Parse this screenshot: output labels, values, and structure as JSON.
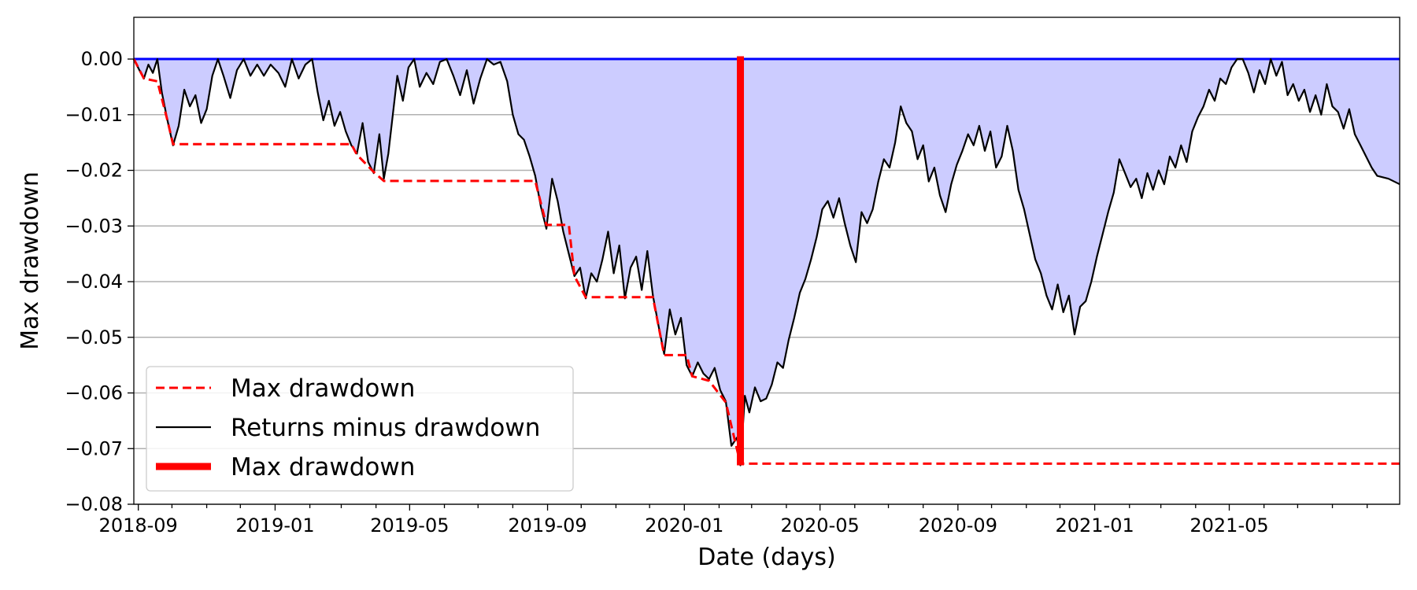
{
  "chart_data": {
    "type": "line",
    "title": "",
    "xlabel": "Date (days)",
    "ylabel": "Max drawdown",
    "xlim": [
      "2018-08-28",
      "2021-09-30"
    ],
    "ylim": [
      -0.08,
      0.0075
    ],
    "grid": "horizontal",
    "legend_position": "lower-left",
    "x_ticks": [
      "2018-09",
      "2019-01",
      "2019-05",
      "2019-09",
      "2020-01",
      "2020-05",
      "2020-09",
      "2021-01",
      "2021-05"
    ],
    "y_ticks": [
      "0.00",
      "−0.01",
      "−0.02",
      "−0.03",
      "−0.04",
      "−0.05",
      "−0.06",
      "−0.07",
      "−0.08"
    ],
    "y_tick_values": [
      0.0,
      -0.01,
      -0.02,
      -0.03,
      -0.04,
      -0.05,
      -0.06,
      -0.07,
      -0.08
    ],
    "colors": {
      "drawdown_line": "#000000",
      "max_drawdown": "#ff0000",
      "fill": "#ccccff",
      "zero_line": "#0000ff",
      "grid": "#b0b0b0"
    },
    "max_drawdown_marker": {
      "date": "2020-02-20",
      "value": -0.073
    },
    "series": [
      {
        "name": "Returns minus drawdown",
        "style": "solid",
        "color": "#000000",
        "points": [
          [
            "2018-08-28",
            0.0
          ],
          [
            "2018-09-02",
            -0.002
          ],
          [
            "2018-09-06",
            -0.0035
          ],
          [
            "2018-09-10",
            -0.001
          ],
          [
            "2018-09-14",
            -0.0025
          ],
          [
            "2018-09-18",
            0.0
          ],
          [
            "2018-09-22",
            -0.006
          ],
          [
            "2018-09-27",
            -0.011
          ],
          [
            "2018-10-02",
            -0.0155
          ],
          [
            "2018-10-07",
            -0.012
          ],
          [
            "2018-10-12",
            -0.0055
          ],
          [
            "2018-10-17",
            -0.0085
          ],
          [
            "2018-10-22",
            -0.0065
          ],
          [
            "2018-10-27",
            -0.0115
          ],
          [
            "2018-11-01",
            -0.009
          ],
          [
            "2018-11-06",
            -0.003
          ],
          [
            "2018-11-11",
            0.0
          ],
          [
            "2018-11-16",
            -0.003
          ],
          [
            "2018-11-22",
            -0.007
          ],
          [
            "2018-11-28",
            -0.002
          ],
          [
            "2018-12-04",
            0.0
          ],
          [
            "2018-12-10",
            -0.003
          ],
          [
            "2018-12-16",
            -0.001
          ],
          [
            "2018-12-22",
            -0.003
          ],
          [
            "2018-12-28",
            -0.001
          ],
          [
            "2019-01-04",
            -0.0025
          ],
          [
            "2019-01-10",
            -0.005
          ],
          [
            "2019-01-16",
            0.0
          ],
          [
            "2019-01-22",
            -0.0035
          ],
          [
            "2019-01-28",
            -0.001
          ],
          [
            "2019-02-03",
            0.0
          ],
          [
            "2019-02-08",
            -0.006
          ],
          [
            "2019-02-13",
            -0.011
          ],
          [
            "2019-02-18",
            -0.0075
          ],
          [
            "2019-02-23",
            -0.012
          ],
          [
            "2019-02-28",
            -0.0095
          ],
          [
            "2019-03-05",
            -0.013
          ],
          [
            "2019-03-10",
            -0.0155
          ],
          [
            "2019-03-15",
            -0.017
          ],
          [
            "2019-03-20",
            -0.0115
          ],
          [
            "2019-03-25",
            -0.0185
          ],
          [
            "2019-03-30",
            -0.0205
          ],
          [
            "2019-04-04",
            -0.0135
          ],
          [
            "2019-04-08",
            -0.0215
          ],
          [
            "2019-04-12",
            -0.017
          ],
          [
            "2019-04-16",
            -0.01
          ],
          [
            "2019-04-20",
            -0.003
          ],
          [
            "2019-04-25",
            -0.0075
          ],
          [
            "2019-04-30",
            -0.0015
          ],
          [
            "2019-05-05",
            0.0
          ],
          [
            "2019-05-10",
            -0.005
          ],
          [
            "2019-05-16",
            -0.0025
          ],
          [
            "2019-05-22",
            -0.0045
          ],
          [
            "2019-05-28",
            -0.0005
          ],
          [
            "2019-06-03",
            0.0
          ],
          [
            "2019-06-09",
            -0.003
          ],
          [
            "2019-06-15",
            -0.0065
          ],
          [
            "2019-06-21",
            -0.002
          ],
          [
            "2019-06-27",
            -0.008
          ],
          [
            "2019-07-03",
            -0.0035
          ],
          [
            "2019-07-09",
            0.0
          ],
          [
            "2019-07-15",
            -0.001
          ],
          [
            "2019-07-21",
            -0.0005
          ],
          [
            "2019-07-27",
            -0.004
          ],
          [
            "2019-08-01",
            -0.01
          ],
          [
            "2019-08-06",
            -0.0135
          ],
          [
            "2019-08-11",
            -0.0145
          ],
          [
            "2019-08-16",
            -0.0175
          ],
          [
            "2019-08-21",
            -0.021
          ],
          [
            "2019-08-26",
            -0.0265
          ],
          [
            "2019-08-31",
            -0.0305
          ],
          [
            "2019-09-05",
            -0.0215
          ],
          [
            "2019-09-10",
            -0.0255
          ],
          [
            "2019-09-15",
            -0.031
          ],
          [
            "2019-09-20",
            -0.035
          ],
          [
            "2019-09-25",
            -0.039
          ],
          [
            "2019-09-30",
            -0.0375
          ],
          [
            "2019-10-05",
            -0.043
          ],
          [
            "2019-10-10",
            -0.0385
          ],
          [
            "2019-10-15",
            -0.04
          ],
          [
            "2019-10-20",
            -0.036
          ],
          [
            "2019-10-25",
            -0.031
          ],
          [
            "2019-10-30",
            -0.0385
          ],
          [
            "2019-11-04",
            -0.0335
          ],
          [
            "2019-11-09",
            -0.043
          ],
          [
            "2019-11-14",
            -0.0375
          ],
          [
            "2019-11-19",
            -0.0355
          ],
          [
            "2019-11-24",
            -0.0415
          ],
          [
            "2019-11-29",
            -0.0345
          ],
          [
            "2019-12-04",
            -0.0425
          ],
          [
            "2019-12-09",
            -0.048
          ],
          [
            "2019-12-14",
            -0.053
          ],
          [
            "2019-12-19",
            -0.045
          ],
          [
            "2019-12-24",
            -0.0495
          ],
          [
            "2019-12-29",
            -0.0465
          ],
          [
            "2020-01-03",
            -0.055
          ],
          [
            "2020-01-08",
            -0.057
          ],
          [
            "2020-01-13",
            -0.0545
          ],
          [
            "2020-01-18",
            -0.0565
          ],
          [
            "2020-01-23",
            -0.0575
          ],
          [
            "2020-01-28",
            -0.0555
          ],
          [
            "2020-02-02",
            -0.0595
          ],
          [
            "2020-02-07",
            -0.0615
          ],
          [
            "2020-02-12",
            -0.0695
          ],
          [
            "2020-02-17",
            -0.068
          ],
          [
            "2020-02-20",
            -0.073
          ],
          [
            "2020-02-24",
            -0.0605
          ],
          [
            "2020-02-28",
            -0.0635
          ],
          [
            "2020-03-04",
            -0.059
          ],
          [
            "2020-03-09",
            -0.0615
          ],
          [
            "2020-03-14",
            -0.061
          ],
          [
            "2020-03-19",
            -0.0585
          ],
          [
            "2020-03-24",
            -0.0545
          ],
          [
            "2020-03-29",
            -0.0555
          ],
          [
            "2020-04-03",
            -0.0505
          ],
          [
            "2020-04-08",
            -0.0465
          ],
          [
            "2020-04-13",
            -0.042
          ],
          [
            "2020-04-18",
            -0.0395
          ],
          [
            "2020-04-23",
            -0.036
          ],
          [
            "2020-04-28",
            -0.032
          ],
          [
            "2020-05-03",
            -0.027
          ],
          [
            "2020-05-08",
            -0.0255
          ],
          [
            "2020-05-13",
            -0.0285
          ],
          [
            "2020-05-18",
            -0.025
          ],
          [
            "2020-05-23",
            -0.0295
          ],
          [
            "2020-05-28",
            -0.0335
          ],
          [
            "2020-06-02",
            -0.0365
          ],
          [
            "2020-06-07",
            -0.0275
          ],
          [
            "2020-06-12",
            -0.0295
          ],
          [
            "2020-06-17",
            -0.027
          ],
          [
            "2020-06-22",
            -0.022
          ],
          [
            "2020-06-27",
            -0.018
          ],
          [
            "2020-07-02",
            -0.0195
          ],
          [
            "2020-07-07",
            -0.015
          ],
          [
            "2020-07-12",
            -0.0085
          ],
          [
            "2020-07-17",
            -0.0115
          ],
          [
            "2020-07-22",
            -0.013
          ],
          [
            "2020-07-27",
            -0.018
          ],
          [
            "2020-08-01",
            -0.0155
          ],
          [
            "2020-08-06",
            -0.022
          ],
          [
            "2020-08-11",
            -0.0195
          ],
          [
            "2020-08-16",
            -0.0245
          ],
          [
            "2020-08-21",
            -0.0275
          ],
          [
            "2020-08-26",
            -0.0225
          ],
          [
            "2020-08-31",
            -0.019
          ],
          [
            "2020-09-05",
            -0.0165
          ],
          [
            "2020-09-10",
            -0.0135
          ],
          [
            "2020-09-15",
            -0.0155
          ],
          [
            "2020-09-20",
            -0.012
          ],
          [
            "2020-09-25",
            -0.0165
          ],
          [
            "2020-09-30",
            -0.013
          ],
          [
            "2020-10-05",
            -0.0195
          ],
          [
            "2020-10-10",
            -0.0175
          ],
          [
            "2020-10-15",
            -0.012
          ],
          [
            "2020-10-20",
            -0.0165
          ],
          [
            "2020-10-25",
            -0.0235
          ],
          [
            "2020-10-30",
            -0.027
          ],
          [
            "2020-11-04",
            -0.0315
          ],
          [
            "2020-11-09",
            -0.036
          ],
          [
            "2020-11-14",
            -0.0385
          ],
          [
            "2020-11-19",
            -0.0425
          ],
          [
            "2020-11-24",
            -0.045
          ],
          [
            "2020-11-29",
            -0.0405
          ],
          [
            "2020-12-04",
            -0.0455
          ],
          [
            "2020-12-09",
            -0.0425
          ],
          [
            "2020-12-14",
            -0.0495
          ],
          [
            "2020-12-19",
            -0.0445
          ],
          [
            "2020-12-24",
            -0.0435
          ],
          [
            "2020-12-29",
            -0.04
          ],
          [
            "2021-01-03",
            -0.0355
          ],
          [
            "2021-01-08",
            -0.0315
          ],
          [
            "2021-01-13",
            -0.0275
          ],
          [
            "2021-01-18",
            -0.024
          ],
          [
            "2021-01-23",
            -0.018
          ],
          [
            "2021-01-28",
            -0.0205
          ],
          [
            "2021-02-02",
            -0.023
          ],
          [
            "2021-02-07",
            -0.0215
          ],
          [
            "2021-02-12",
            -0.025
          ],
          [
            "2021-02-17",
            -0.0205
          ],
          [
            "2021-02-22",
            -0.0235
          ],
          [
            "2021-02-27",
            -0.02
          ],
          [
            "2021-03-04",
            -0.0225
          ],
          [
            "2021-03-09",
            -0.0175
          ],
          [
            "2021-03-14",
            -0.0195
          ],
          [
            "2021-03-19",
            -0.0155
          ],
          [
            "2021-03-24",
            -0.0185
          ],
          [
            "2021-03-29",
            -0.013
          ],
          [
            "2021-04-03",
            -0.0105
          ],
          [
            "2021-04-08",
            -0.0085
          ],
          [
            "2021-04-13",
            -0.0055
          ],
          [
            "2021-04-18",
            -0.0075
          ],
          [
            "2021-04-23",
            -0.0035
          ],
          [
            "2021-04-28",
            -0.0045
          ],
          [
            "2021-05-03",
            -0.0015
          ],
          [
            "2021-05-08",
            0.0
          ],
          [
            "2021-05-13",
            0.0
          ],
          [
            "2021-05-18",
            -0.0025
          ],
          [
            "2021-05-23",
            -0.006
          ],
          [
            "2021-05-28",
            -0.002
          ],
          [
            "2021-06-02",
            -0.0045
          ],
          [
            "2021-06-07",
            0.0
          ],
          [
            "2021-06-12",
            -0.003
          ],
          [
            "2021-06-17",
            -0.0005
          ],
          [
            "2021-06-22",
            -0.0065
          ],
          [
            "2021-06-27",
            -0.0045
          ],
          [
            "2021-07-02",
            -0.0075
          ],
          [
            "2021-07-07",
            -0.0055
          ],
          [
            "2021-07-12",
            -0.0095
          ],
          [
            "2021-07-17",
            -0.0065
          ],
          [
            "2021-07-22",
            -0.01
          ],
          [
            "2021-07-27",
            -0.0045
          ],
          [
            "2021-08-01",
            -0.0085
          ],
          [
            "2021-08-06",
            -0.0095
          ],
          [
            "2021-08-11",
            -0.0125
          ],
          [
            "2021-08-16",
            -0.009
          ],
          [
            "2021-08-21",
            -0.0135
          ],
          [
            "2021-08-26",
            -0.0155
          ],
          [
            "2021-08-31",
            -0.0175
          ],
          [
            "2021-09-05",
            -0.0195
          ],
          [
            "2021-09-10",
            -0.021
          ],
          [
            "2021-09-20",
            -0.0215
          ],
          [
            "2021-09-30",
            -0.0225
          ]
        ]
      },
      {
        "name": "Max drawdown",
        "style": "dashed",
        "color": "#ff0000",
        "points": [
          [
            "2018-08-28",
            0.0
          ],
          [
            "2018-09-06",
            -0.0035
          ],
          [
            "2018-09-18",
            -0.004
          ],
          [
            "2018-09-27",
            -0.011
          ],
          [
            "2018-10-02",
            -0.0153
          ],
          [
            "2019-03-10",
            -0.0153
          ],
          [
            "2019-03-15",
            -0.0172
          ],
          [
            "2019-03-30",
            -0.0203
          ],
          [
            "2019-04-08",
            -0.0219
          ],
          [
            "2019-08-21",
            -0.0219
          ],
          [
            "2019-08-31",
            -0.0298
          ],
          [
            "2019-09-20",
            -0.0298
          ],
          [
            "2019-09-25",
            -0.039
          ],
          [
            "2019-10-05",
            -0.0428
          ],
          [
            "2019-12-04",
            -0.0428
          ],
          [
            "2019-12-14",
            -0.0532
          ],
          [
            "2020-01-03",
            -0.0532
          ],
          [
            "2020-01-08",
            -0.057
          ],
          [
            "2020-01-23",
            -0.0578
          ],
          [
            "2020-02-07",
            -0.0617
          ],
          [
            "2020-02-20",
            -0.0727
          ],
          [
            "2021-09-30",
            -0.0727
          ]
        ]
      }
    ],
    "legend": [
      {
        "label": "Max drawdown",
        "style": "dashed",
        "color": "#ff0000"
      },
      {
        "label": "Returns minus drawdown",
        "style": "solid",
        "color": "#000000"
      },
      {
        "label": "Max drawdown",
        "style": "thick",
        "color": "#ff0000"
      }
    ]
  }
}
